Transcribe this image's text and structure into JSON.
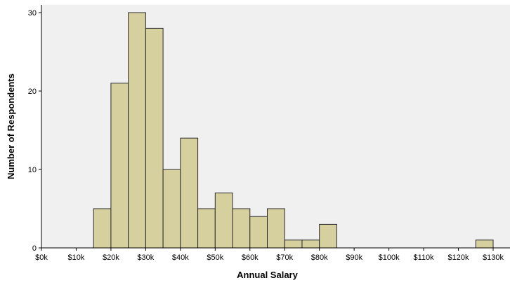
{
  "chart_data": {
    "type": "bar",
    "subtype": "histogram",
    "xlabel": "Annual Salary",
    "ylabel": "Number of Respondents",
    "bin_width": 5000,
    "xlim": [
      0,
      130000
    ],
    "ylim": [
      0,
      30
    ],
    "xticks": [
      0,
      10000,
      20000,
      30000,
      40000,
      50000,
      60000,
      70000,
      80000,
      90000,
      100000,
      110000,
      120000,
      130000
    ],
    "xtick_labels": [
      "$0k",
      "$10k",
      "$20k",
      "$30k",
      "$40k",
      "$50k",
      "$60k",
      "$70k",
      "$80k",
      "$90k",
      "$100k",
      "$110k",
      "$120k",
      "$130k"
    ],
    "yticks": [
      0,
      10,
      20,
      30
    ],
    "ytick_labels": [
      "0",
      "10",
      "20",
      "30"
    ],
    "bins": [
      {
        "start": 15000,
        "end": 20000,
        "count": 5
      },
      {
        "start": 20000,
        "end": 25000,
        "count": 21
      },
      {
        "start": 25000,
        "end": 30000,
        "count": 30
      },
      {
        "start": 30000,
        "end": 35000,
        "count": 28
      },
      {
        "start": 35000,
        "end": 40000,
        "count": 10
      },
      {
        "start": 40000,
        "end": 45000,
        "count": 14
      },
      {
        "start": 45000,
        "end": 50000,
        "count": 5
      },
      {
        "start": 50000,
        "end": 55000,
        "count": 7
      },
      {
        "start": 55000,
        "end": 60000,
        "count": 5
      },
      {
        "start": 60000,
        "end": 65000,
        "count": 4
      },
      {
        "start": 65000,
        "end": 70000,
        "count": 5
      },
      {
        "start": 70000,
        "end": 75000,
        "count": 1
      },
      {
        "start": 75000,
        "end": 80000,
        "count": 1
      },
      {
        "start": 80000,
        "end": 85000,
        "count": 3
      },
      {
        "start": 125000,
        "end": 130000,
        "count": 1
      }
    ],
    "grid": false,
    "colors": {
      "bar_fill": "#D6CF9E",
      "bar_stroke": "#2A2A2A",
      "plot_background": "#F0F0F0",
      "page_background": "#FFFFFF",
      "axis": "#000000"
    }
  }
}
